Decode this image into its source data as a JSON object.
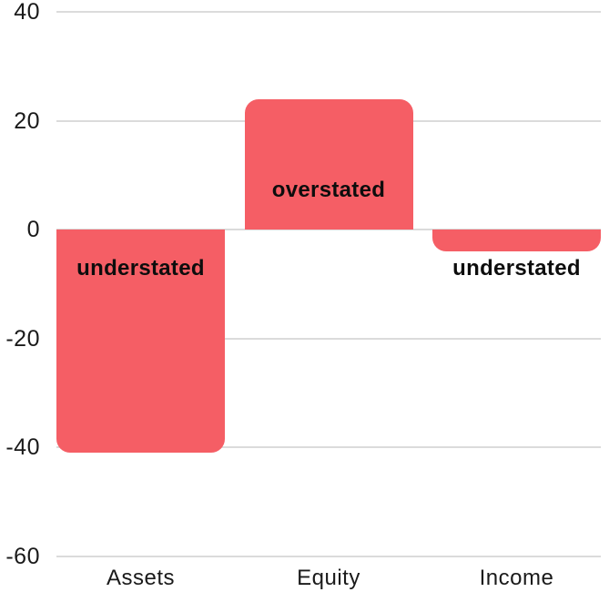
{
  "chart_data": {
    "type": "bar",
    "title": "",
    "xlabel": "",
    "ylabel": "",
    "categories": [
      "Assets",
      "Equity",
      "Income"
    ],
    "values": [
      -41,
      24,
      -4
    ],
    "bar_labels": [
      "understated",
      "overstated",
      "understated"
    ],
    "ylim": [
      -60,
      40
    ],
    "y_ticks": [
      40,
      20,
      0,
      -20,
      -40,
      -60
    ],
    "grid": "horizontal",
    "legend": "none",
    "colors": {
      "bar": "#f55e65",
      "gridline": "#dbdbdb",
      "axis_text": "#1a1a1a",
      "bar_label_text": "#0d0d0d",
      "background": "#ffffff"
    }
  }
}
